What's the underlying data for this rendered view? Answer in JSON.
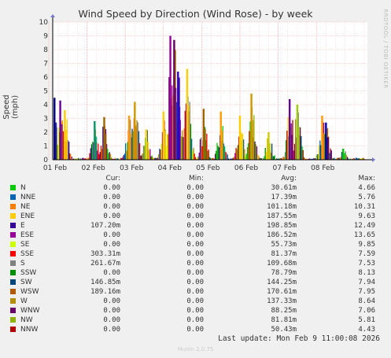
{
  "chart_data": {
    "type": "area",
    "title": "Wind Speed by Direction (Wind Rose) - by week",
    "ylabel": "Speed (mph)",
    "ylim": [
      0,
      10
    ],
    "yticks": [
      "0",
      "1",
      "2",
      "3",
      "4",
      "5",
      "6",
      "7",
      "8",
      "9",
      "10"
    ],
    "x_ticks": [
      "01 Feb",
      "02 Feb",
      "03 Feb",
      "04 Feb",
      "05 Feb",
      "06 Feb",
      "07 Feb",
      "08 Feb"
    ],
    "grid": true,
    "peaks": [
      {
        "day": 0.15,
        "h": 4.5,
        "color": "#000080"
      },
      {
        "day": 0.3,
        "h": 4.3,
        "color": "#660099"
      },
      {
        "day": 0.42,
        "h": 3.6,
        "color": "#ffcc00"
      },
      {
        "day": 1.2,
        "h": 2.8,
        "color": "#009966"
      },
      {
        "day": 1.45,
        "h": 3.1,
        "color": "#996600"
      },
      {
        "day": 2.1,
        "h": 3.2,
        "color": "#ff9900"
      },
      {
        "day": 2.25,
        "h": 4.2,
        "color": "#cc9900"
      },
      {
        "day": 2.55,
        "h": 2.2,
        "color": "#ffcc00"
      },
      {
        "day": 3.0,
        "h": 3.5,
        "color": "#ffcc00"
      },
      {
        "day": 3.18,
        "h": 9.0,
        "color": "#990099"
      },
      {
        "day": 3.28,
        "h": 8.7,
        "color": "#660066"
      },
      {
        "day": 3.38,
        "h": 6.4,
        "color": "#3300cc"
      },
      {
        "day": 3.62,
        "h": 6.6,
        "color": "#ffcc00"
      },
      {
        "day": 4.05,
        "h": 3.7,
        "color": "#996600"
      },
      {
        "day": 4.5,
        "h": 3.5,
        "color": "#ff9900"
      },
      {
        "day": 5.0,
        "h": 3.2,
        "color": "#ffcc00"
      },
      {
        "day": 5.3,
        "h": 4.8,
        "color": "#cc9900"
      },
      {
        "day": 5.75,
        "h": 2.0,
        "color": "#cccc00"
      },
      {
        "day": 6.3,
        "h": 4.4,
        "color": "#660099"
      },
      {
        "day": 6.5,
        "h": 4.0,
        "color": "#99cc00"
      },
      {
        "day": 7.15,
        "h": 3.2,
        "color": "#ff9900"
      },
      {
        "day": 7.25,
        "h": 2.7,
        "color": "#0000aa"
      },
      {
        "day": 7.7,
        "h": 0.8,
        "color": "#00cc00"
      }
    ],
    "series": [
      {
        "name": "N",
        "color": "#00cc00",
        "cur": "0.00",
        "min": "0.00",
        "avg": "30.61m",
        "max": "4.66"
      },
      {
        "name": "NNE",
        "color": "#0066b3",
        "cur": "0.00",
        "min": "0.00",
        "avg": "17.39m",
        "max": "5.76"
      },
      {
        "name": "NE",
        "color": "#ff8000",
        "cur": "0.00",
        "min": "0.00",
        "avg": "101.18m",
        "max": "10.31"
      },
      {
        "name": "ENE",
        "color": "#ffcc00",
        "cur": "0.00",
        "min": "0.00",
        "avg": "187.55m",
        "max": "9.63"
      },
      {
        "name": "E",
        "color": "#330099",
        "cur": "107.20m",
        "min": "0.00",
        "avg": "198.85m",
        "max": "12.49"
      },
      {
        "name": "ESE",
        "color": "#990099",
        "cur": "0.00",
        "min": "0.00",
        "avg": "186.52m",
        "max": "13.65"
      },
      {
        "name": "SE",
        "color": "#ccff00",
        "cur": "0.00",
        "min": "0.00",
        "avg": "55.73m",
        "max": "9.85"
      },
      {
        "name": "SSE",
        "color": "#ff0000",
        "cur": "303.31m",
        "min": "0.00",
        "avg": "81.37m",
        "max": "7.59"
      },
      {
        "name": "S",
        "color": "#808080",
        "cur": "261.67m",
        "min": "0.00",
        "avg": "109.68m",
        "max": "7.53"
      },
      {
        "name": "SSW",
        "color": "#008f00",
        "cur": "0.00",
        "min": "0.00",
        "avg": "78.79m",
        "max": "8.13"
      },
      {
        "name": "SW",
        "color": "#00487d",
        "cur": "146.85m",
        "min": "0.00",
        "avg": "144.25m",
        "max": "7.94"
      },
      {
        "name": "WSW",
        "color": "#b35a00",
        "cur": "189.16m",
        "min": "0.00",
        "avg": "170.61m",
        "max": "7.95"
      },
      {
        "name": "W",
        "color": "#b38f00",
        "cur": "0.00",
        "min": "0.00",
        "avg": "137.33m",
        "max": "8.64"
      },
      {
        "name": "WNW",
        "color": "#6b006b",
        "cur": "0.00",
        "min": "0.00",
        "avg": "88.25m",
        "max": "7.06"
      },
      {
        "name": "NW",
        "color": "#8fb300",
        "cur": "0.00",
        "min": "0.00",
        "avg": "81.81m",
        "max": "5.81"
      },
      {
        "name": "NNW",
        "color": "#b30000",
        "cur": "0.00",
        "min": "0.00",
        "avg": "50.43m",
        "max": "4.43"
      }
    ]
  },
  "legend": {
    "col_cur": "Cur:",
    "col_min": "Min:",
    "col_avg": "Avg:",
    "col_max": "Max:"
  },
  "footer": {
    "last_update": "Last update: Mon Feb  9 11:00:08 2026",
    "generator": "Munin 2.0.75",
    "vertical_label": "RRDTOOL / TOBI OETIKER"
  },
  "colors": {
    "background": "#f0f0f0",
    "plot_bg": "#ffffff",
    "grid_minor": "#ffaaaa",
    "axis": "#000000"
  }
}
